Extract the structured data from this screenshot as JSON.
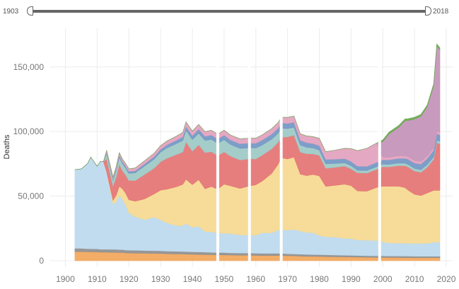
{
  "slider": {
    "min_label": "1903",
    "max_label": "2018",
    "range_start": 1903,
    "range_end": 2018
  },
  "colors": {
    "background": "#ffffff",
    "gridline": "#ececec",
    "gap": "#ffffff"
  },
  "chart_data": {
    "type": "area",
    "title": "",
    "xlabel": "",
    "ylabel": "Deaths",
    "xlim": [
      1895,
      2022
    ],
    "ylim": [
      -5000,
      180000
    ],
    "x_ticks": [
      1900,
      1910,
      1920,
      1930,
      1940,
      1950,
      1960,
      1970,
      1980,
      1990,
      2000,
      2010,
      2020
    ],
    "y_ticks": [
      0,
      50000,
      100000,
      150000
    ],
    "y_tick_labels": [
      "0",
      "50,000",
      "100,000",
      "150,000"
    ],
    "grid": true,
    "stacked": true,
    "gaps_at": [
      1948,
      1958,
      1968,
      1999
    ],
    "x": [
      1903,
      1905,
      1907,
      1908,
      1910,
      1911,
      1912,
      1913,
      1915,
      1916,
      1917,
      1918,
      1919,
      1920,
      1922,
      1925,
      1928,
      1930,
      1932,
      1935,
      1937,
      1938,
      1940,
      1942,
      1944,
      1946,
      1948,
      1950,
      1952,
      1955,
      1958,
      1960,
      1962,
      1965,
      1967,
      1968,
      1970,
      1972,
      1974,
      1976,
      1978,
      1980,
      1982,
      1985,
      1988,
      1990,
      1992,
      1995,
      1998,
      2000,
      2002,
      2005,
      2007,
      2008,
      2010,
      2012,
      2014,
      2016,
      2017,
      2018
    ],
    "series": [
      {
        "color": "#f2a65a",
        "values": [
          7000,
          7000,
          6800,
          6800,
          6700,
          6500,
          6500,
          6500,
          6400,
          6400,
          6300,
          6300,
          6000,
          5900,
          5800,
          5700,
          5600,
          5500,
          5300,
          5200,
          5100,
          5000,
          4900,
          4800,
          4700,
          4600,
          4500,
          4400,
          4300,
          4200,
          4200,
          4100,
          4000,
          4000,
          4000,
          4000,
          3800,
          3700,
          3500,
          3400,
          3300,
          3200,
          3100,
          3000,
          2900,
          2800,
          2700,
          2600,
          2500,
          2500,
          2400,
          2400,
          2300,
          2300,
          2300,
          2300,
          2300,
          2300,
          2300,
          2300
        ]
      },
      {
        "color": "#8e8e8e",
        "values": [
          2500,
          2500,
          2400,
          2400,
          2400,
          2300,
          2300,
          2300,
          2300,
          2300,
          2300,
          2300,
          2200,
          2200,
          2200,
          2100,
          2100,
          2100,
          2000,
          2000,
          2000,
          2000,
          1900,
          1900,
          1900,
          1800,
          1800,
          1800,
          1700,
          1700,
          1700,
          1600,
          1600,
          1600,
          1600,
          1600,
          1500,
          1500,
          1500,
          1400,
          1400,
          1400,
          1400,
          1300,
          1300,
          1300,
          1300,
          1200,
          1200,
          1200,
          1200,
          1200,
          1200,
          1200,
          1100,
          1100,
          1100,
          1100,
          1100,
          1100
        ]
      },
      {
        "color": "#bcd9ee",
        "values": [
          61000,
          61500,
          66000,
          71000,
          64000,
          68000,
          68000,
          60000,
          35000,
          37000,
          42000,
          39000,
          35000,
          29000,
          26000,
          24000,
          26000,
          24000,
          22000,
          20000,
          20000,
          22000,
          19000,
          20000,
          16000,
          16000,
          15000,
          15000,
          15000,
          14000,
          14000,
          14000,
          16000,
          16000,
          18000,
          18000,
          18500,
          19000,
          18000,
          17000,
          17000,
          15000,
          14000,
          14000,
          13000,
          13000,
          12000,
          12000,
          12000,
          11000,
          10000,
          10000,
          10000,
          10000,
          10000,
          10000,
          10000,
          11000,
          11000,
          11000
        ]
      },
      {
        "color": "#f5d98f",
        "values": [
          0,
          0,
          0,
          0,
          0,
          0,
          0,
          0,
          3000,
          5000,
          7000,
          8000,
          9000,
          10000,
          12000,
          16000,
          18000,
          23000,
          26000,
          30000,
          32000,
          34000,
          33000,
          36000,
          33000,
          35000,
          34000,
          38000,
          37000,
          36000,
          38000,
          39000,
          40000,
          46000,
          51000,
          56000,
          55000,
          56000,
          44000,
          44000,
          45000,
          46000,
          39000,
          40000,
          42000,
          41000,
          38000,
          38000,
          41000,
          43000,
          44000,
          44000,
          43000,
          41000,
          38000,
          37000,
          39000,
          40000,
          40000,
          40000
        ]
      },
      {
        "color": "#e57373",
        "values": [
          0,
          0,
          0,
          0,
          0,
          0,
          0,
          10000,
          11000,
          14000,
          17000,
          14000,
          14000,
          15000,
          16000,
          19000,
          20000,
          22000,
          24000,
          25000,
          25000,
          29000,
          26000,
          27000,
          28000,
          27000,
          26000,
          25000,
          23000,
          22000,
          21000,
          20000,
          20000,
          19000,
          17000,
          16000,
          17000,
          17000,
          17000,
          17000,
          16000,
          16000,
          14000,
          14000,
          14000,
          13000,
          14000,
          14000,
          14000,
          15000,
          15000,
          16000,
          17000,
          18000,
          18000,
          18000,
          20000,
          24000,
          37000,
          36000
        ]
      },
      {
        "color": "#9cc9c4",
        "values": [
          0,
          0,
          0,
          0,
          0,
          0,
          0,
          4000,
          4500,
          5000,
          5500,
          5500,
          5500,
          5500,
          6000,
          6500,
          7000,
          7500,
          8000,
          8500,
          9000,
          9000,
          9000,
          9000,
          9500,
          9500,
          9500,
          9500,
          9000,
          9000,
          8500,
          8500,
          8000,
          7500,
          7000,
          7000,
          6500,
          6000,
          5500,
          5000,
          4500,
          4000,
          3500,
          3000,
          2500,
          2500,
          2000,
          2000,
          2000,
          2000,
          2000,
          2000,
          2000,
          2000,
          2000,
          2000,
          2000,
          2000,
          2000,
          2000
        ]
      },
      {
        "color": "#7296c4",
        "values": [
          0,
          0,
          0,
          0,
          0,
          0,
          0,
          1000,
          1000,
          1200,
          1500,
          1500,
          1500,
          1500,
          1600,
          1800,
          2000,
          2200,
          2400,
          2600,
          2800,
          3000,
          3000,
          3200,
          3200,
          3400,
          3400,
          3500,
          3500,
          3600,
          3600,
          3700,
          3800,
          3900,
          4000,
          4000,
          4000,
          4000,
          3800,
          3600,
          3500,
          3500,
          3400,
          3300,
          3300,
          3200,
          3200,
          3200,
          3300,
          3400,
          3500,
          3600,
          3800,
          4000,
          4200,
          4400,
          4700,
          5000,
          5000,
          5000
        ]
      },
      {
        "color": "#e3a1bd",
        "values": [
          0,
          0,
          0,
          0,
          0,
          0,
          0,
          1500,
          1500,
          1800,
          2000,
          2000,
          2000,
          2000,
          2200,
          2400,
          2600,
          2800,
          3000,
          3200,
          3400,
          3500,
          3500,
          3600,
          3600,
          3700,
          3700,
          3800,
          3800,
          3900,
          3900,
          4000,
          4000,
          4200,
          4300,
          4400,
          4600,
          4800,
          5000,
          5200,
          5400,
          5600,
          6000,
          7000,
          8000,
          10000,
          12000,
          14000,
          15000,
          2000,
          2000,
          2000,
          2000,
          2000,
          2000,
          2000,
          2000,
          2000,
          2000,
          2000
        ]
      },
      {
        "color": "#c393b8",
        "values": [
          0,
          0,
          0,
          0,
          0,
          0,
          0,
          0,
          0,
          0,
          0,
          0,
          0,
          0,
          0,
          0,
          0,
          0,
          0,
          0,
          0,
          0,
          0,
          0,
          0,
          0,
          0,
          0,
          0,
          0,
          0,
          0,
          0,
          0,
          0,
          0,
          0,
          0,
          0,
          0,
          0,
          0,
          0,
          0,
          0,
          0,
          0,
          0,
          0,
          12000,
          18000,
          22000,
          27000,
          28000,
          32000,
          35000,
          38000,
          48000,
          66000,
          64000
        ]
      },
      {
        "color": "#6aa84f",
        "values": [
          0,
          0,
          0,
          0,
          0,
          0,
          0,
          0,
          0,
          0,
          0,
          0,
          0,
          0,
          0,
          0,
          0,
          0,
          0,
          0,
          0,
          0,
          0,
          0,
          0,
          0,
          0,
          0,
          0,
          0,
          0,
          0,
          0,
          0,
          0,
          0,
          0,
          0,
          0,
          0,
          0,
          0,
          0,
          0,
          0,
          0,
          0,
          0,
          0,
          1500,
          1500,
          1500,
          1500,
          1500,
          1500,
          1500,
          1500,
          1500,
          1500,
          1500
        ]
      }
    ]
  }
}
